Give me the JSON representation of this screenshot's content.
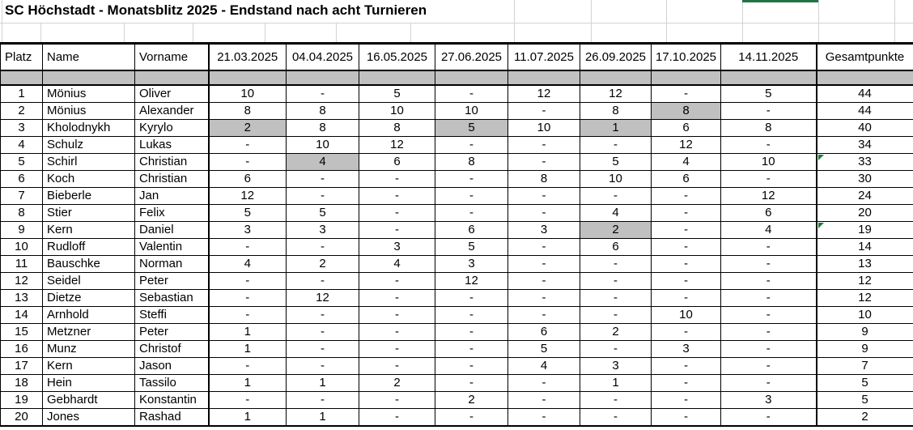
{
  "title": "SC Höchstadt - Monatsblitz 2025 - Endstand nach acht Turnieren",
  "colors": {
    "highlight": "#c0c0c0",
    "selection": "#217346",
    "marker": "#1e7e34",
    "gridline": "#d2d2d2",
    "border": "#000000"
  },
  "table": {
    "columns": [
      "Platz",
      "Name",
      "Vorname",
      "21.03.2025",
      "04.04.2025",
      "16.05.2025",
      "27.06.2025",
      "11.07.2025",
      "26.09.2025",
      "17.10.2025",
      "14.11.2025",
      "Gesamtpunkte"
    ],
    "rows": [
      {
        "platz": "1",
        "name": "Mönius",
        "vorname": "Oliver",
        "scores": [
          "10",
          "-",
          "5",
          "-",
          "12",
          "12",
          "-",
          "5"
        ],
        "total": "44",
        "struck": [],
        "marker": false
      },
      {
        "platz": "2",
        "name": "Mönius",
        "vorname": "Alexander",
        "scores": [
          "8",
          "8",
          "10",
          "10",
          "-",
          "8",
          "8",
          "-"
        ],
        "total": "44",
        "struck": [
          6
        ],
        "marker": false
      },
      {
        "platz": "3",
        "name": "Kholodnykh",
        "vorname": "Kyrylo",
        "scores": [
          "2",
          "8",
          "8",
          "5",
          "10",
          "1",
          "6",
          "8"
        ],
        "total": "40",
        "struck": [
          0,
          3,
          5
        ],
        "marker": false
      },
      {
        "platz": "4",
        "name": "Schulz",
        "vorname": "Lukas",
        "scores": [
          "-",
          "10",
          "12",
          "-",
          "-",
          "-",
          "12",
          "-"
        ],
        "total": "34",
        "struck": [],
        "marker": false
      },
      {
        "platz": "5",
        "name": "Schirl",
        "vorname": "Christian",
        "scores": [
          "-",
          "4",
          "6",
          "8",
          "-",
          "5",
          "4",
          "10"
        ],
        "total": "33",
        "struck": [
          1
        ],
        "marker": true
      },
      {
        "platz": "6",
        "name": "Koch",
        "vorname": "Christian",
        "scores": [
          "6",
          "-",
          "-",
          "-",
          "8",
          "10",
          "6",
          "-"
        ],
        "total": "30",
        "struck": [],
        "marker": false
      },
      {
        "platz": "7",
        "name": "Bieberle",
        "vorname": "Jan",
        "scores": [
          "12",
          "-",
          "-",
          "-",
          "-",
          "-",
          "-",
          "12"
        ],
        "total": "24",
        "struck": [],
        "marker": false
      },
      {
        "platz": "8",
        "name": "Stier",
        "vorname": "Felix",
        "scores": [
          "5",
          "5",
          "-",
          "-",
          "-",
          "4",
          "-",
          "6"
        ],
        "total": "20",
        "struck": [],
        "marker": false
      },
      {
        "platz": "9",
        "name": "Kern",
        "vorname": "Daniel",
        "scores": [
          "3",
          "3",
          "-",
          "6",
          "3",
          "2",
          "-",
          "4"
        ],
        "total": "19",
        "struck": [
          5
        ],
        "marker": true
      },
      {
        "platz": "10",
        "name": "Rudloff",
        "vorname": "Valentin",
        "scores": [
          "-",
          "-",
          "3",
          "5",
          "-",
          "6",
          "-",
          "-"
        ],
        "total": "14",
        "struck": [],
        "marker": false
      },
      {
        "platz": "11",
        "name": "Bauschke",
        "vorname": "Norman",
        "scores": [
          "4",
          "2",
          "4",
          "3",
          "-",
          "-",
          "-",
          "-"
        ],
        "total": "13",
        "struck": [],
        "marker": false
      },
      {
        "platz": "12",
        "name": "Seidel",
        "vorname": "Peter",
        "scores": [
          "-",
          "-",
          "-",
          "12",
          "-",
          "-",
          "-",
          "-"
        ],
        "total": "12",
        "struck": [],
        "marker": false
      },
      {
        "platz": "13",
        "name": "Dietze",
        "vorname": "Sebastian",
        "scores": [
          "-",
          "12",
          "-",
          "-",
          "-",
          "-",
          "-",
          "-"
        ],
        "total": "12",
        "struck": [],
        "marker": false
      },
      {
        "platz": "14",
        "name": "Arnhold",
        "vorname": "Steffi",
        "scores": [
          "-",
          "-",
          "-",
          "-",
          "-",
          "-",
          "10",
          "-"
        ],
        "total": "10",
        "struck": [],
        "marker": false
      },
      {
        "platz": "15",
        "name": "Metzner",
        "vorname": "Peter",
        "scores": [
          "1",
          "-",
          "-",
          "-",
          "6",
          "2",
          "-",
          "-"
        ],
        "total": "9",
        "struck": [],
        "marker": false
      },
      {
        "platz": "16",
        "name": "Munz",
        "vorname": "Christof",
        "scores": [
          "1",
          "-",
          "-",
          "-",
          "5",
          "-",
          "3",
          "-"
        ],
        "total": "9",
        "struck": [],
        "marker": false
      },
      {
        "platz": "17",
        "name": "Kern",
        "vorname": "Jason",
        "scores": [
          "-",
          "-",
          "-",
          "-",
          "4",
          "3",
          "-",
          "-"
        ],
        "total": "7",
        "struck": [],
        "marker": false
      },
      {
        "platz": "18",
        "name": "Hein",
        "vorname": "Tassilo",
        "scores": [
          "1",
          "1",
          "2",
          "-",
          "-",
          "1",
          "-",
          "-"
        ],
        "total": "5",
        "struck": [],
        "marker": false
      },
      {
        "platz": "19",
        "name": "Gebhardt",
        "vorname": "Konstantin",
        "scores": [
          "-",
          "-",
          "-",
          "2",
          "-",
          "-",
          "-",
          "3"
        ],
        "total": "5",
        "struck": [],
        "marker": false
      },
      {
        "platz": "20",
        "name": "Jones",
        "vorname": "Rashad",
        "scores": [
          "1",
          "1",
          "-",
          "-",
          "-",
          "-",
          "-",
          "-"
        ],
        "total": "2",
        "struck": [],
        "marker": false
      }
    ]
  }
}
